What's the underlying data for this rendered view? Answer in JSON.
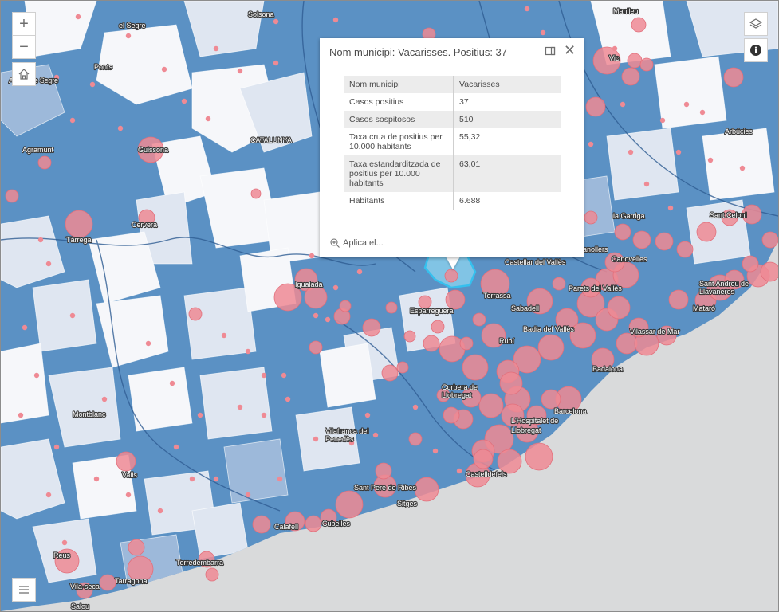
{
  "controls": {
    "zoom_in": "+",
    "zoom_out": "−",
    "home_icon": "home-icon",
    "layers_icon": "layers-icon",
    "info_icon": "info-icon",
    "legend_icon": "list-icon"
  },
  "popup": {
    "title": "Nom municipi: Vacarisses. Positius: 37",
    "action_label": "Aplica el...",
    "rows": [
      {
        "label": "Nom municipi",
        "value": "Vacarisses"
      },
      {
        "label": "Casos positius",
        "value": "37"
      },
      {
        "label": "Casos sospitosos",
        "value": "510"
      },
      {
        "label": "Taxa crua de positius per 10.000 habitants",
        "value": "55,32"
      },
      {
        "label": "Taxa estandarditzada de positius per 10.000 habitants",
        "value": "63,01"
      },
      {
        "label": "Habitants",
        "value": "6.688"
      }
    ]
  },
  "map_labels": [
    "Solsona",
    "el Segre",
    "Manlleu",
    "Ponts",
    "Vic",
    "Artesa de Segre",
    "Arbúcies",
    "Agramunt",
    "Guissona",
    "CATALUNYA",
    "Tàrrega",
    "Cervera",
    "la Garriga",
    "Sant Celoni",
    "Granollers",
    "Canovelles",
    "Castellar del Vallès",
    "Igualada",
    "Terrassa",
    "Parets del Vallès",
    "Sant Andreu de Llavaneres",
    "Esparreguera",
    "Sabadell",
    "Mataró",
    "Badia del Vallès",
    "Vilassar de Mar",
    "Rubí",
    "Badalona",
    "Corbera de Llobregat",
    "Barcelona",
    "Montblanc",
    "L'Hospitalet de Llobregat",
    "Vilafranca del Penedès",
    "Valls",
    "Castelldefels",
    "Sant Pere de Ribes",
    "Sitges",
    "Calafell",
    "Cubelles",
    "Reus",
    "Torredembarra",
    "Tarragona",
    "Vila-seca",
    "Salou"
  ],
  "colors": {
    "sea": "#d9dadb",
    "region_dark": "#5b91c4",
    "region_mid": "#9db9da",
    "region_light": "#dfe6f1",
    "region_white": "#f6f7fa",
    "circle_fill": "#ef8a94",
    "selected": "#8ed6f0"
  }
}
